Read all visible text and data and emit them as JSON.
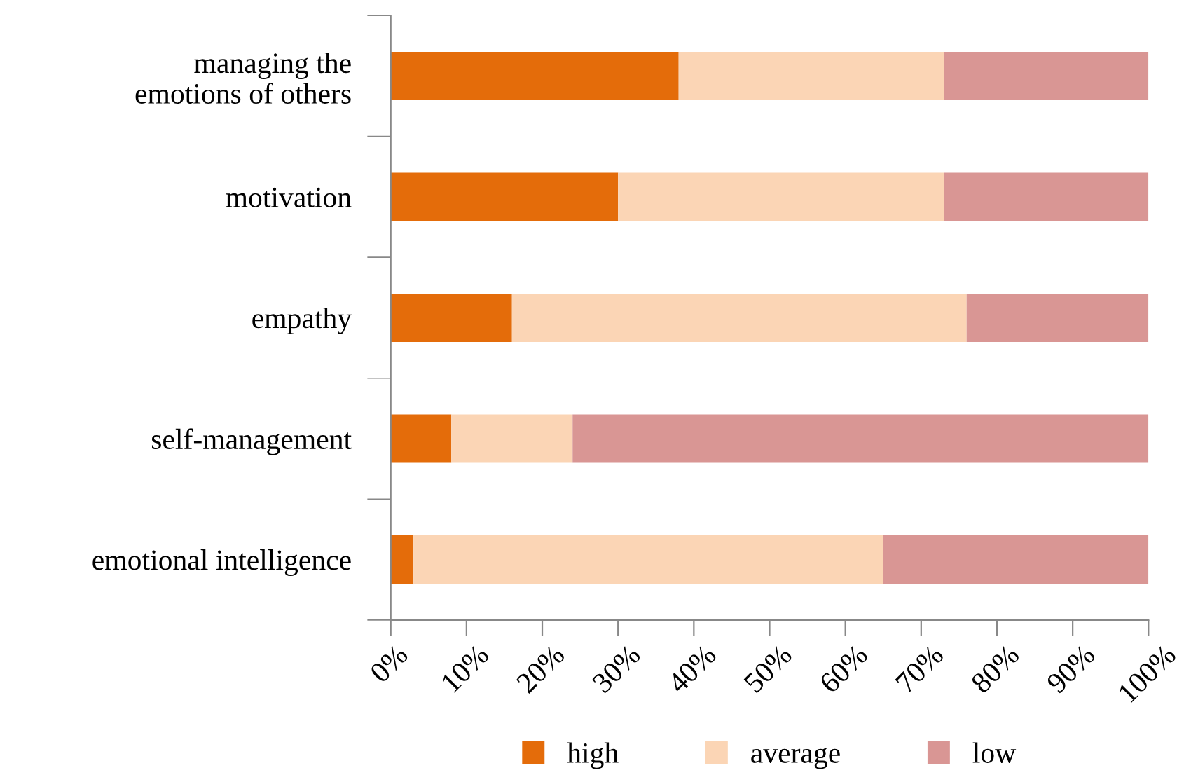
{
  "chart_data": {
    "type": "bar",
    "orientation": "horizontal",
    "stacked": true,
    "categories": [
      "managing the\nemotions of others",
      "motivation",
      "empathy",
      "self-management",
      "emotional intelligence"
    ],
    "series": [
      {
        "name": "high",
        "color": "#e46c0a",
        "values": [
          38,
          30,
          16,
          8,
          3
        ]
      },
      {
        "name": "average",
        "color": "#fbd5b5",
        "values": [
          35,
          43,
          60,
          16,
          62
        ]
      },
      {
        "name": "low",
        "color": "#d99694",
        "values": [
          27,
          27,
          24,
          76,
          35
        ]
      }
    ],
    "xlim": [
      0,
      100
    ],
    "xticks": [
      {
        "value": 0,
        "label": "0%"
      },
      {
        "value": 10,
        "label": "10%"
      },
      {
        "value": 20,
        "label": "20%"
      },
      {
        "value": 30,
        "label": "30%"
      },
      {
        "value": 40,
        "label": "40%"
      },
      {
        "value": 50,
        "label": "50%"
      },
      {
        "value": 60,
        "label": "60%"
      },
      {
        "value": 70,
        "label": "70%"
      },
      {
        "value": 80,
        "label": "80%"
      },
      {
        "value": 90,
        "label": "90%"
      },
      {
        "value": 100,
        "label": "100%"
      }
    ],
    "grid": false,
    "legend": "bottom"
  }
}
